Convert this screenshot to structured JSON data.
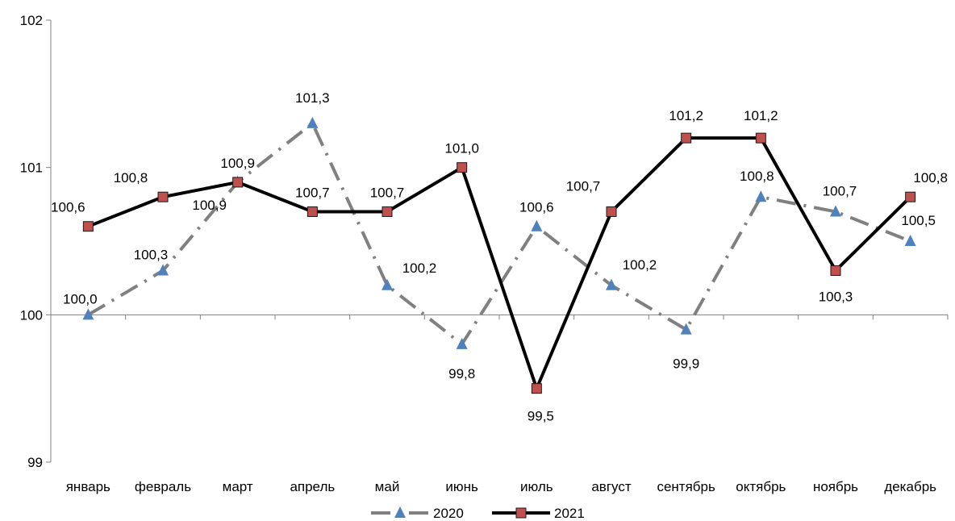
{
  "chart_data": {
    "type": "line",
    "categories": [
      "январь",
      "февраль",
      "март",
      "апрель",
      "май",
      "июнь",
      "июль",
      "август",
      "сентябрь",
      "октябрь",
      "ноябрь",
      "декабрь"
    ],
    "series": [
      {
        "name": "2020",
        "values": [
          100.0,
          100.3,
          100.9,
          101.3,
          100.2,
          99.8,
          100.6,
          100.2,
          99.9,
          100.8,
          100.7,
          100.5
        ],
        "labels": [
          "100,0",
          "100,3",
          "100,9",
          "101,3",
          "100,2",
          "99,8",
          "100,6",
          "100,2",
          "99,9",
          "100,8",
          "100,7",
          "100,5"
        ],
        "color": "#808080",
        "marker": "triangle",
        "marker_color": "#4F81BD",
        "line_style": "dash-dot"
      },
      {
        "name": "2021",
        "values": [
          100.6,
          100.8,
          100.9,
          100.7,
          100.7,
          101.0,
          99.5,
          100.7,
          101.2,
          101.2,
          100.3,
          100.8
        ],
        "labels": [
          "100,6",
          "100,8",
          "100,9",
          "100,7",
          "100,7",
          "101,0",
          "99,5",
          "100,7",
          "101,2",
          "101,2",
          "100,3",
          "100,8"
        ],
        "color": "#000000",
        "marker": "square",
        "marker_color": "#C0504D",
        "line_style": "solid"
      }
    ],
    "ylim": [
      99,
      102
    ],
    "yticks": [
      99,
      100,
      101,
      102
    ],
    "ytick_labels": [
      "99",
      "100",
      "101",
      "102"
    ],
    "grid": false,
    "legend_position": "bottom"
  }
}
